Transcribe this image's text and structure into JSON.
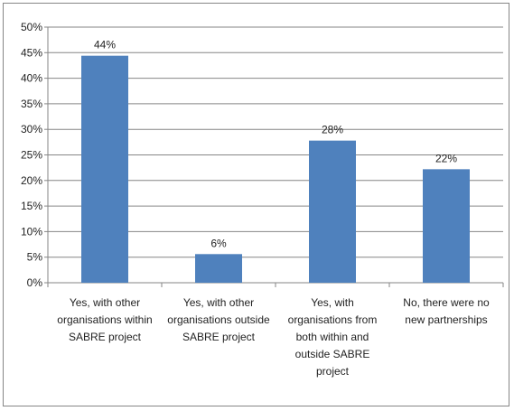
{
  "chart_data": {
    "type": "bar",
    "categories": [
      [
        "Yes, with other",
        "organisations within",
        "SABRE project"
      ],
      [
        "Yes, with other",
        "organisations outside",
        "SABRE project"
      ],
      [
        "Yes, with",
        "organisations from",
        "both within and",
        "outside SABRE",
        "project"
      ],
      [
        "No, there were no",
        "new partnerships"
      ]
    ],
    "values": [
      44.4,
      5.6,
      27.8,
      22.2
    ],
    "data_labels": [
      "44%",
      "6%",
      "28%",
      "22%"
    ],
    "ylim": [
      0,
      50
    ],
    "y_ticks": [
      "0%",
      "5%",
      "10%",
      "15%",
      "20%",
      "25%",
      "30%",
      "35%",
      "40%",
      "45%",
      "50%"
    ],
    "title": "",
    "xlabel": "",
    "ylabel": "",
    "grid": true,
    "bar_color": "#4F81BD",
    "grid_color": "#868686"
  }
}
